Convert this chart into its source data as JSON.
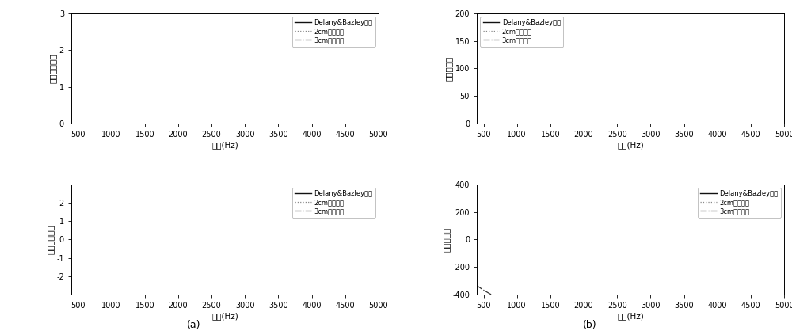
{
  "freq_min": 400,
  "freq_max": 5000,
  "xticks": [
    500,
    1000,
    1500,
    2000,
    2500,
    3000,
    3500,
    4000,
    4500,
    5000
  ],
  "xlabel": "频率(Hz)",
  "panel_a_top": {
    "ylabel": "特征阻抗实部",
    "ylim": [
      0,
      3
    ],
    "yticks": [
      0,
      1,
      2,
      3
    ]
  },
  "panel_a_bot": {
    "ylabel": "特征阻抗虚部",
    "ylim": [
      -3,
      3
    ],
    "yticks": [
      -2,
      -1,
      0,
      1,
      2
    ]
  },
  "panel_b_top": {
    "ylabel": "复波数实部",
    "ylim": [
      0,
      200
    ],
    "yticks": [
      0,
      50,
      100,
      150,
      200
    ]
  },
  "panel_b_bot": {
    "ylabel": "复波数虚部",
    "ylim": [
      -400,
      400
    ],
    "yticks": [
      -400,
      -200,
      0,
      200,
      400
    ]
  },
  "legend_entries": [
    "Delany&Bazley模型",
    "2cm纤维材料",
    "3cm纤维材料"
  ],
  "label_a": "(a)",
  "label_b": "(b)",
  "figure_facecolor": "#ffffff"
}
